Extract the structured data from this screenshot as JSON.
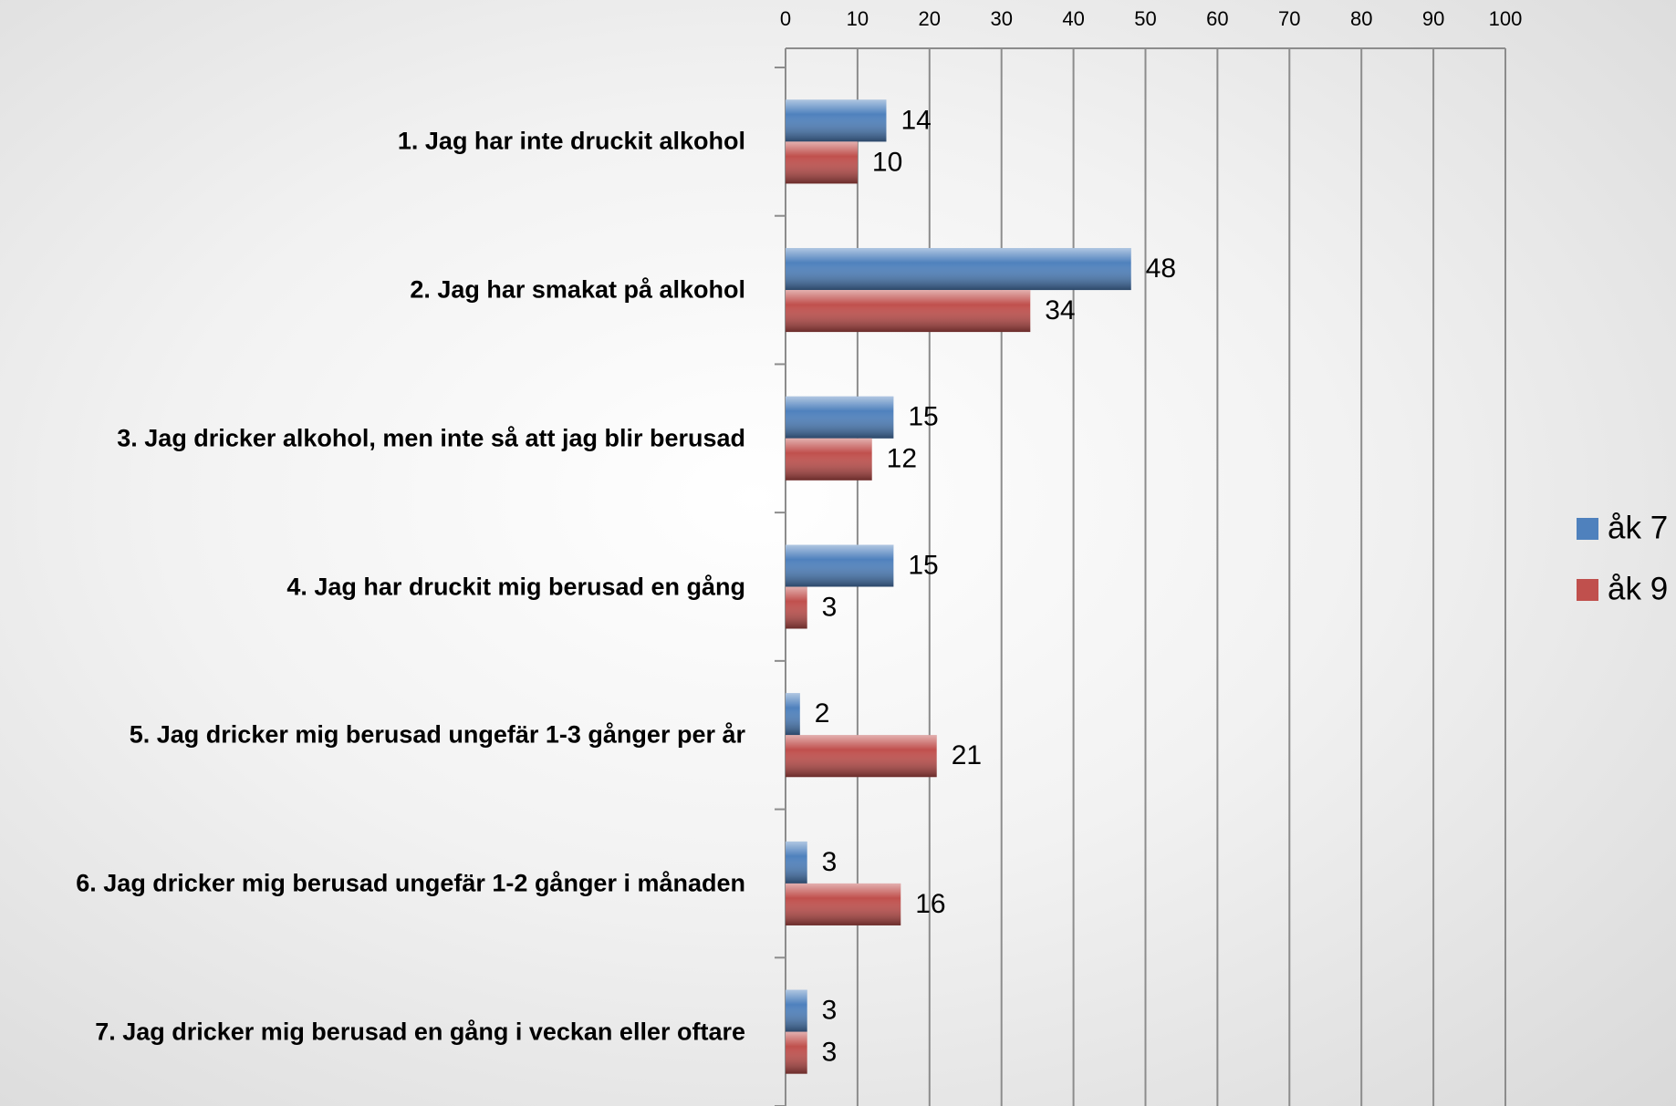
{
  "chart_data": {
    "type": "bar",
    "orientation": "horizontal",
    "categories": [
      "1. Jag har inte druckit alkohol",
      "2. Jag har smakat på alkohol",
      "3. Jag dricker alkohol, men inte så att jag blir berusad",
      "4. Jag har druckit mig berusad en gång",
      "5. Jag dricker mig berusad ungefär 1-3 gånger per år",
      "6. Jag dricker mig berusad ungefär 1-2 gånger i månaden",
      "7. Jag dricker mig berusad en gång i veckan eller oftare"
    ],
    "series": [
      {
        "name": "åk 7",
        "color": "#4f81bd",
        "values": [
          14,
          48,
          15,
          15,
          2,
          3,
          3
        ]
      },
      {
        "name": "åk 9",
        "color": "#c0504d",
        "values": [
          10,
          34,
          12,
          3,
          21,
          16,
          3
        ]
      }
    ],
    "xlim": [
      0,
      100
    ],
    "xticks": [
      0,
      10,
      20,
      30,
      40,
      50,
      60,
      70,
      80,
      90,
      100
    ],
    "grid": true,
    "legend": "right"
  }
}
